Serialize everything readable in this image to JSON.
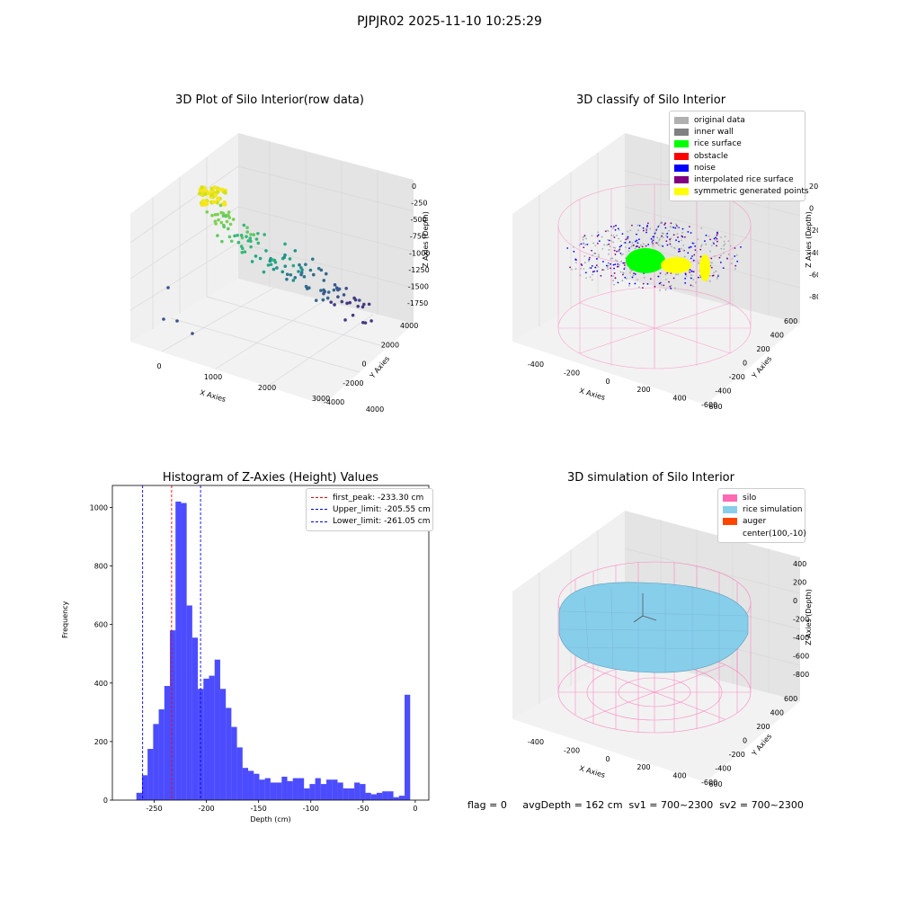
{
  "figure": {
    "suptitle": "PJPJR02 2025-11-10 10:25:29",
    "footer": "flag = 0     avgDepth = 162 cm  sv1 = 700~2300  sv2 = 700~2300"
  },
  "panels": {
    "raw": {
      "title": "3D Plot of Silo Interior(row data)",
      "xlabel": "X Axies",
      "ylabel": "Y Axies",
      "zlabel": "Z Axies (Depth)",
      "xticks": [
        "0",
        "1000",
        "2000",
        "3000",
        "4000"
      ],
      "yticks": [
        "4000",
        "2000",
        "0",
        "-2000",
        "-4000"
      ],
      "zticks": [
        "0",
        "-250",
        "-500",
        "-750",
        "-1000",
        "-1250",
        "-1500",
        "-1750"
      ]
    },
    "classify": {
      "title": "3D classify of Silo Interior",
      "xlabel": "X Axies",
      "ylabel": "Y Axies",
      "zlabel": "Z Axies (Depth)",
      "xticks": [
        "-400",
        "-200",
        "0",
        "200",
        "400",
        "600"
      ],
      "yticks": [
        "600",
        "400",
        "200",
        "0",
        "-200",
        "-400",
        "-600"
      ],
      "zticks": [
        "200",
        "0",
        "-200",
        "-400",
        "-600",
        "-800"
      ],
      "legend": [
        {
          "label": "original data",
          "color": "#b0b0b0"
        },
        {
          "label": "inner wall",
          "color": "#808080"
        },
        {
          "label": "rice surface",
          "color": "#00ff00"
        },
        {
          "label": "obstacle",
          "color": "#ff0000"
        },
        {
          "label": "noise",
          "color": "#0000ff"
        },
        {
          "label": "interpolated rice surface",
          "color": "#800080"
        },
        {
          "label": "symmetric generated points",
          "color": "#ffff00"
        }
      ]
    },
    "simulation": {
      "title": "3D simulation of Silo Interior",
      "xlabel": "X Axies",
      "ylabel": "Y Axies",
      "zlabel": "Z Axies (Depth)",
      "xticks": [
        "-400",
        "-200",
        "0",
        "200",
        "400",
        "600"
      ],
      "yticks": [
        "600",
        "400",
        "200",
        "0",
        "-200",
        "-400",
        "-600"
      ],
      "zticks": [
        "400",
        "200",
        "0",
        "-200",
        "-400",
        "-600",
        "-800"
      ],
      "legend": [
        {
          "label": "silo",
          "color": "#ff69b4"
        },
        {
          "label": "rice simulation",
          "color": "#87ceeb"
        },
        {
          "label": "auger",
          "color": "#ff4500"
        },
        {
          "label": "center(100,-10)",
          "color": ""
        }
      ]
    }
  },
  "chart_data": [
    {
      "type": "bar",
      "title": "Histogram of Z-Axies (Height) Values",
      "xlabel": "Depth (cm)",
      "ylabel": "Frequency",
      "xlim": [
        -290,
        13
      ],
      "ylim": [
        0,
        1075
      ],
      "bar_color": "#0000ff",
      "bar_opacity": 0.7,
      "xticks": [
        -250,
        -200,
        -150,
        -100,
        -50,
        0
      ],
      "yticks": [
        0,
        200,
        400,
        600,
        800,
        1000
      ],
      "bins": {
        "start": -267,
        "width": 5.35,
        "counts": [
          25,
          85,
          175,
          260,
          310,
          390,
          580,
          1020,
          1015,
          665,
          555,
          380,
          415,
          425,
          480,
          380,
          315,
          250,
          180,
          110,
          100,
          90,
          70,
          75,
          60,
          60,
          80,
          65,
          75,
          75,
          40,
          55,
          75,
          55,
          70,
          70,
          60,
          40,
          40,
          60,
          55,
          25,
          20,
          25,
          30,
          30,
          10,
          15,
          360
        ]
      },
      "lines": [
        {
          "label": "first_peak: -233.30 cm",
          "x": -233.3,
          "color": "#ff0000"
        },
        {
          "label": "Upper_limit: -205.55 cm",
          "x": -205.55,
          "color": "#0000ff"
        },
        {
          "label": "Lower_limit: -261.05 cm",
          "x": -261.05,
          "color": "#0000ff"
        }
      ],
      "legend_position": "top-right"
    }
  ]
}
